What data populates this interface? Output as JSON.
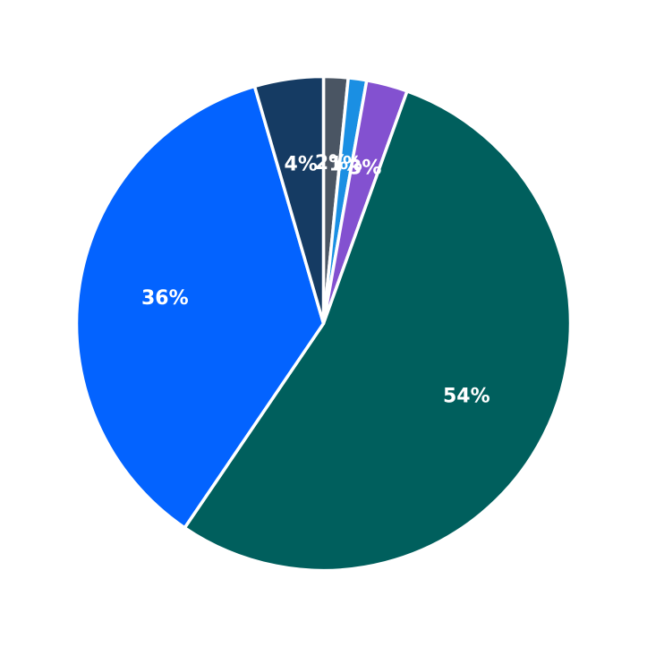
{
  "chart_data": {
    "type": "pie",
    "title": "",
    "start_angle_deg": 90,
    "direction": "clockwise",
    "slices": [
      {
        "value": 1.6,
        "label": "2%",
        "color": "#4a5563"
      },
      {
        "value": 1.2,
        "label": "1%",
        "color": "#1a8fe3"
      },
      {
        "value": 2.7,
        "label": "3%",
        "color": "#8351d0"
      },
      {
        "value": 54.0,
        "label": "54%",
        "color": "#005f5d"
      },
      {
        "value": 36.0,
        "label": "36%",
        "color": "#0363ff"
      },
      {
        "value": 4.5,
        "label": "4%",
        "color": "#153b63"
      }
    ]
  }
}
